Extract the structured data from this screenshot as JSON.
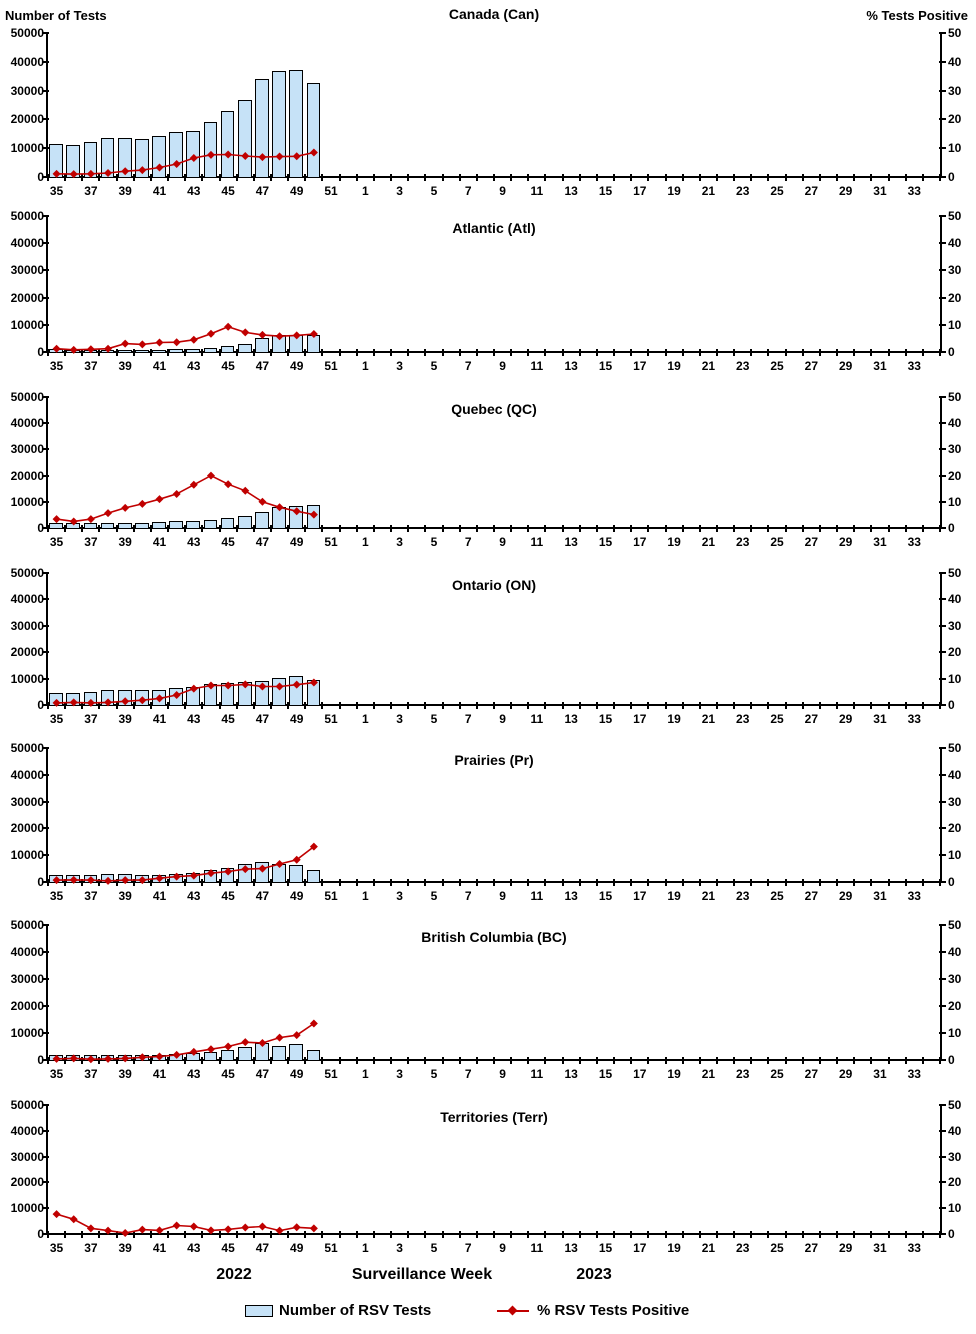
{
  "figure": {
    "left_axis_title": "Number of Tests",
    "right_axis_title": "% Tests Positive",
    "left_ticks": [
      50000,
      40000,
      30000,
      20000,
      10000,
      0
    ],
    "right_ticks": [
      50,
      40,
      30,
      20,
      10,
      0
    ],
    "x_tick_labels": [
      35,
      37,
      39,
      41,
      43,
      45,
      47,
      49,
      51,
      1,
      3,
      5,
      7,
      9,
      11,
      13,
      15,
      17,
      19,
      21,
      23,
      25,
      27,
      29,
      31,
      33
    ],
    "x_weeks_2022": 18,
    "x_weeks_2023": 34
  },
  "footer": {
    "year_left": "2022",
    "x_axis_label": "Surveillance Week",
    "year_right": "2023"
  },
  "legend": {
    "bar_label": "Number of RSV Tests",
    "line_label": "% RSV Tests Positive"
  },
  "colors": {
    "bar_fill": "#C6E2F7",
    "bar_border": "#000000",
    "line": "#C00000",
    "text": "#000000"
  },
  "chart_data": [
    {
      "type": "bar",
      "title": "Canada (Can)",
      "weeks": [
        35,
        36,
        37,
        38,
        39,
        40,
        41,
        42,
        43,
        44,
        45,
        46,
        47,
        48,
        49,
        50
      ],
      "ylim_left": [
        0,
        50000
      ],
      "ylim_right": [
        0,
        50
      ],
      "series": [
        {
          "name": "Number of RSV Tests",
          "type": "bar",
          "axis": "left",
          "values": [
            11500,
            11200,
            12200,
            13400,
            13700,
            13100,
            14400,
            15600,
            16000,
            19000,
            23000,
            26700,
            34000,
            36700,
            37300,
            32500
          ]
        },
        {
          "name": "% RSV Tests Positive",
          "type": "line",
          "axis": "right",
          "values": [
            1.1,
            1.0,
            1.1,
            1.4,
            2.0,
            2.4,
            3.3,
            4.5,
            6.6,
            7.7,
            7.8,
            7.3,
            6.9,
            7.1,
            7.2,
            8.5
          ]
        }
      ]
    },
    {
      "type": "bar",
      "title": "Atlantic (Atl)",
      "weeks": [
        35,
        36,
        37,
        38,
        39,
        40,
        41,
        42,
        43,
        44,
        45,
        46,
        47,
        48,
        49,
        50
      ],
      "ylim_left": [
        0,
        50000
      ],
      "ylim_right": [
        0,
        50
      ],
      "series": [
        {
          "name": "Number of RSV Tests",
          "type": "bar",
          "axis": "left",
          "values": [
            1000,
            700,
            800,
            700,
            800,
            800,
            900,
            1100,
            1200,
            1400,
            2300,
            2800,
            5000,
            6300,
            6300,
            6200
          ]
        },
        {
          "name": "% RSV Tests Positive",
          "type": "line",
          "axis": "right",
          "values": [
            1.2,
            0.8,
            1.0,
            1.2,
            3.1,
            2.8,
            3.5,
            3.6,
            4.5,
            6.7,
            9.3,
            7.2,
            6.3,
            5.8,
            6.1,
            6.6
          ]
        }
      ]
    },
    {
      "type": "bar",
      "title": "Quebec (QC)",
      "weeks": [
        35,
        36,
        37,
        38,
        39,
        40,
        41,
        42,
        43,
        44,
        45,
        46,
        47,
        48,
        49,
        50
      ],
      "ylim_left": [
        0,
        50000
      ],
      "ylim_right": [
        0,
        50
      ],
      "series": [
        {
          "name": "Number of RSV Tests",
          "type": "bar",
          "axis": "left",
          "values": [
            1900,
            1900,
            1900,
            1900,
            2000,
            2000,
            2300,
            2700,
            2700,
            2900,
            4000,
            4500,
            6000,
            8100,
            8300,
            8600
          ]
        },
        {
          "name": "% RSV Tests Positive",
          "type": "line",
          "axis": "right",
          "values": [
            3.4,
            2.5,
            3.4,
            5.7,
            7.7,
            9.2,
            11.0,
            13.0,
            16.5,
            20.0,
            16.7,
            14.2,
            10.0,
            7.9,
            6.4,
            5.1
          ]
        }
      ]
    },
    {
      "type": "bar",
      "title": "Ontario (ON)",
      "weeks": [
        35,
        36,
        37,
        38,
        39,
        40,
        41,
        42,
        43,
        44,
        45,
        46,
        47,
        48,
        49,
        50
      ],
      "ylim_left": [
        0,
        50000
      ],
      "ylim_right": [
        0,
        50
      ],
      "series": [
        {
          "name": "Number of RSV Tests",
          "type": "bar",
          "axis": "left",
          "values": [
            4700,
            4600,
            5100,
            5800,
            5800,
            5700,
            5800,
            6500,
            6800,
            7900,
            8500,
            8900,
            9200,
            10100,
            10800,
            9300
          ]
        },
        {
          "name": "% RSV Tests Positive",
          "type": "line",
          "axis": "right",
          "values": [
            0.8,
            1.0,
            0.8,
            1.0,
            1.4,
            1.8,
            2.5,
            3.8,
            6.2,
            7.4,
            7.4,
            7.8,
            7.0,
            7.0,
            7.7,
            8.5
          ]
        }
      ]
    },
    {
      "type": "bar",
      "title": "Prairies (Pr)",
      "weeks": [
        35,
        36,
        37,
        38,
        39,
        40,
        41,
        42,
        43,
        44,
        45,
        46,
        47,
        48,
        49,
        50
      ],
      "ylim_left": [
        0,
        50000
      ],
      "ylim_right": [
        0,
        50
      ],
      "series": [
        {
          "name": "Number of RSV Tests",
          "type": "bar",
          "axis": "left",
          "values": [
            2500,
            2500,
            2500,
            2800,
            2800,
            2600,
            2500,
            3000,
            3300,
            4500,
            5400,
            6800,
            7600,
            6800,
            6300,
            4500
          ]
        },
        {
          "name": "% RSV Tests Positive",
          "type": "line",
          "axis": "right",
          "values": [
            0.7,
            0.8,
            0.7,
            0.4,
            0.7,
            0.7,
            1.4,
            2.0,
            2.4,
            3.3,
            3.9,
            4.8,
            5.0,
            6.7,
            8.3,
            13.2
          ]
        }
      ]
    },
    {
      "type": "bar",
      "title": "British Columbia (BC)",
      "weeks": [
        35,
        36,
        37,
        38,
        39,
        40,
        41,
        42,
        43,
        44,
        45,
        46,
        47,
        48,
        49,
        50
      ],
      "ylim_left": [
        0,
        50000
      ],
      "ylim_right": [
        0,
        50
      ],
      "series": [
        {
          "name": "Number of RSV Tests",
          "type": "bar",
          "axis": "left",
          "values": [
            1700,
            1800,
            2000,
            2000,
            2000,
            1900,
            1900,
            2200,
            2500,
            3000,
            3600,
            4700,
            6200,
            5300,
            5800,
            3700
          ]
        },
        {
          "name": "% RSV Tests Positive",
          "type": "line",
          "axis": "right",
          "values": [
            0.4,
            0.6,
            0.3,
            0.4,
            0.6,
            1.0,
            1.3,
            1.9,
            3.0,
            4.0,
            5.0,
            6.6,
            6.3,
            8.3,
            9.2,
            13.5
          ]
        }
      ]
    },
    {
      "type": "bar",
      "title": "Territories (Terr)",
      "weeks": [
        35,
        36,
        37,
        38,
        39,
        40,
        41,
        42,
        43,
        44,
        45,
        46,
        47,
        48,
        49,
        50
      ],
      "ylim_left": [
        0,
        50000
      ],
      "ylim_right": [
        0,
        50
      ],
      "series": [
        {
          "name": "Number of RSV Tests",
          "type": "bar",
          "axis": "left",
          "values": [
            0,
            0,
            0,
            0,
            0,
            0,
            0,
            0,
            0,
            0,
            0,
            0,
            0,
            0,
            0,
            0
          ]
        },
        {
          "name": "% RSV Tests Positive",
          "type": "line",
          "axis": "right",
          "values": [
            7.7,
            5.7,
            2.2,
            1.3,
            0.4,
            1.7,
            1.4,
            3.3,
            2.9,
            1.4,
            1.8,
            2.5,
            2.9,
            1.3,
            2.6,
            2.2
          ]
        }
      ]
    }
  ]
}
